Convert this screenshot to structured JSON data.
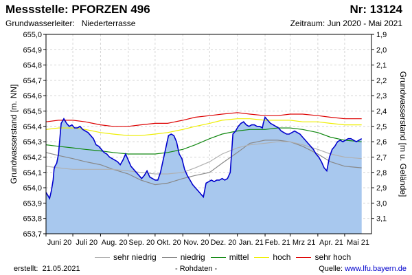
{
  "header": {
    "title": "Messstelle: PFORZEN 496",
    "nr": "Nr: 13124",
    "aquifer_label": "Grundwasserleiter:",
    "aquifer_value": "Niederterrasse",
    "period": "Zeitraum: Jun 2020 - Mai 2021"
  },
  "legend": [
    {
      "label": "sehr niedrig",
      "color": "#b0b0b0"
    },
    {
      "label": "niedrig",
      "color": "#888888"
    },
    {
      "label": "mittel",
      "color": "#118811"
    },
    {
      "label": "hoch",
      "color": "#eeee00"
    },
    {
      "label": "sehr hoch",
      "color": "#dd0000"
    }
  ],
  "footer": {
    "created_label": "erstellt:",
    "created_date": "21.05.2021",
    "raw_note": "- Rohdaten -",
    "source_label": "Quelle:",
    "source_url": "www.lfu.bayern.de"
  },
  "chart_data": {
    "type": "area",
    "ylabel": "Grundwasserstand [m. NN]",
    "y2label": "Grundwasserstand [m u. Gelände]",
    "ylim": [
      653.7,
      655.0
    ],
    "yticks": [
      "655,0",
      "654,9",
      "654,8",
      "654,7",
      "654,6",
      "654,5",
      "654,4",
      "654,3",
      "654,2",
      "654,1",
      "654,0",
      "653,9",
      "653,8",
      "653,7"
    ],
    "y2lim": [
      3.2,
      1.9
    ],
    "y2ticks": [
      "1,9",
      "2,0",
      "2,1",
      "2,2",
      "2,3",
      "2,4",
      "2,5",
      "2,6",
      "2,7",
      "2,8",
      "2,9",
      "3,0",
      "3,1"
    ],
    "xlim": [
      "2020-06-01",
      "2021-05-31"
    ],
    "xticks": [
      "Juni 20",
      "Juli 20",
      "Aug. 20",
      "Sep. 20",
      "Okt. 20",
      "Nov. 20",
      "Dez. 20",
      "Jan. 21",
      "Feb. 21",
      "Mrz 21",
      "Apr. 21",
      "Mai 21"
    ],
    "grid": true,
    "series": [
      {
        "name": "Grundwasserstand",
        "color": "#0000cc",
        "fill": "#a8c8ee",
        "x": [
          "2020-06-01",
          "2020-06-03",
          "2020-06-05",
          "2020-06-07",
          "2020-06-09",
          "2020-06-10",
          "2020-06-11",
          "2020-06-13",
          "2020-06-15",
          "2020-06-18",
          "2020-06-21",
          "2020-06-24",
          "2020-06-27",
          "2020-06-30",
          "2020-07-03",
          "2020-07-06",
          "2020-07-09",
          "2020-07-12",
          "2020-07-15",
          "2020-07-18",
          "2020-07-21",
          "2020-07-24",
          "2020-07-27",
          "2020-07-30",
          "2020-08-02",
          "2020-08-05",
          "2020-08-08",
          "2020-08-11",
          "2020-08-14",
          "2020-08-17",
          "2020-08-20",
          "2020-08-23",
          "2020-08-26",
          "2020-08-29",
          "2020-09-01",
          "2020-09-04",
          "2020-09-07",
          "2020-09-10",
          "2020-09-13",
          "2020-09-16",
          "2020-09-19",
          "2020-09-22",
          "2020-09-25",
          "2020-09-28",
          "2020-10-01",
          "2020-10-04",
          "2020-10-07",
          "2020-10-10",
          "2020-10-13",
          "2020-10-16",
          "2020-10-19",
          "2020-10-22",
          "2020-10-25",
          "2020-10-28",
          "2020-10-31",
          "2020-11-03",
          "2020-11-06",
          "2020-11-09",
          "2020-11-12",
          "2020-11-15",
          "2020-11-18",
          "2020-11-21",
          "2020-11-24",
          "2020-11-27",
          "2020-11-30",
          "2020-12-03",
          "2020-12-06",
          "2020-12-09",
          "2020-12-12",
          "2020-12-15",
          "2020-12-18",
          "2020-12-21",
          "2020-12-24",
          "2020-12-27",
          "2020-12-30",
          "2021-01-02",
          "2021-01-05",
          "2021-01-08",
          "2021-01-11",
          "2021-01-14",
          "2021-01-17",
          "2021-01-20",
          "2021-01-23",
          "2021-01-26",
          "2021-01-29",
          "2021-01-30",
          "2021-02-01",
          "2021-02-04",
          "2021-02-07",
          "2021-02-10",
          "2021-02-13",
          "2021-02-16",
          "2021-02-19",
          "2021-02-22",
          "2021-02-25",
          "2021-02-28",
          "2021-03-03",
          "2021-03-06",
          "2021-03-09",
          "2021-03-12",
          "2021-03-15",
          "2021-03-18",
          "2021-03-21",
          "2021-03-24",
          "2021-03-27",
          "2021-03-30",
          "2021-04-02",
          "2021-04-05",
          "2021-04-08",
          "2021-04-11",
          "2021-04-14",
          "2021-04-17",
          "2021-04-20",
          "2021-04-23",
          "2021-04-26",
          "2021-04-29",
          "2021-05-02",
          "2021-05-05",
          "2021-05-08",
          "2021-05-11",
          "2021-05-14",
          "2021-05-17",
          "2021-05-20"
        ],
        "y": [
          653.97,
          653.95,
          653.93,
          653.98,
          654.05,
          654.12,
          654.14,
          654.16,
          654.22,
          654.42,
          654.45,
          654.42,
          654.4,
          654.41,
          654.39,
          654.39,
          654.4,
          654.38,
          654.37,
          654.36,
          654.34,
          654.32,
          654.28,
          654.27,
          654.25,
          654.23,
          654.22,
          654.2,
          654.19,
          654.18,
          654.17,
          654.15,
          654.18,
          654.22,
          654.18,
          654.14,
          654.12,
          654.1,
          654.08,
          654.06,
          654.08,
          654.11,
          654.07,
          654.06,
          654.05,
          654.05,
          654.1,
          654.18,
          654.26,
          654.34,
          654.35,
          654.34,
          654.3,
          654.22,
          654.19,
          654.12,
          654.08,
          654.05,
          654.02,
          654.0,
          653.98,
          653.96,
          653.94,
          654.03,
          654.04,
          654.05,
          654.04,
          654.05,
          654.05,
          654.06,
          654.05,
          654.06,
          654.1,
          654.35,
          654.37,
          654.4,
          654.42,
          654.43,
          654.41,
          654.4,
          654.41,
          654.41,
          654.4,
          654.4,
          654.39,
          654.42,
          654.46,
          654.44,
          654.42,
          654.41,
          654.4,
          654.39,
          654.37,
          654.36,
          654.35,
          654.35,
          654.36,
          654.37,
          654.36,
          654.35,
          654.33,
          654.31,
          654.29,
          654.27,
          654.25,
          654.22,
          654.2,
          654.17,
          654.13,
          654.11,
          654.2,
          654.25,
          654.27,
          654.3,
          654.31,
          654.3,
          654.31,
          654.32,
          654.32,
          654.31,
          654.3,
          654.31,
          654.32
        ]
      },
      {
        "name": "sehr hoch",
        "color": "#dd0000",
        "x": [
          "2020-06-01",
          "2020-06-15",
          "2020-07-01",
          "2020-07-15",
          "2020-08-01",
          "2020-08-15",
          "2020-09-01",
          "2020-09-15",
          "2020-10-01",
          "2020-10-15",
          "2020-11-01",
          "2020-11-15",
          "2020-12-01",
          "2020-12-15",
          "2021-01-01",
          "2021-01-15",
          "2021-02-01",
          "2021-02-15",
          "2021-03-01",
          "2021-03-15",
          "2021-04-01",
          "2021-04-15",
          "2021-05-01",
          "2021-05-20"
        ],
        "y": [
          654.43,
          654.44,
          654.44,
          654.43,
          654.41,
          654.4,
          654.4,
          654.41,
          654.42,
          654.42,
          654.44,
          654.46,
          654.47,
          654.48,
          654.49,
          654.48,
          654.47,
          654.47,
          654.48,
          654.48,
          654.47,
          654.46,
          654.45,
          654.45
        ]
      },
      {
        "name": "hoch",
        "color": "#eeee00",
        "x": [
          "2020-06-01",
          "2020-06-15",
          "2020-07-01",
          "2020-07-15",
          "2020-08-01",
          "2020-08-15",
          "2020-09-01",
          "2020-09-15",
          "2020-10-01",
          "2020-10-15",
          "2020-11-01",
          "2020-11-15",
          "2020-12-01",
          "2020-12-15",
          "2021-01-01",
          "2021-01-15",
          "2021-02-01",
          "2021-02-15",
          "2021-03-01",
          "2021-03-15",
          "2021-04-01",
          "2021-04-15",
          "2021-05-01",
          "2021-05-20"
        ],
        "y": [
          654.38,
          654.39,
          654.39,
          654.38,
          654.36,
          654.35,
          654.34,
          654.34,
          654.35,
          654.36,
          654.38,
          654.4,
          654.42,
          654.44,
          654.45,
          654.45,
          654.44,
          654.44,
          654.44,
          654.43,
          654.43,
          654.42,
          654.41,
          654.41
        ]
      },
      {
        "name": "mittel",
        "color": "#118811",
        "x": [
          "2020-06-01",
          "2020-06-15",
          "2020-07-01",
          "2020-07-15",
          "2020-08-01",
          "2020-08-15",
          "2020-09-01",
          "2020-09-15",
          "2020-10-01",
          "2020-10-15",
          "2020-11-01",
          "2020-11-15",
          "2020-12-01",
          "2020-12-15",
          "2021-01-01",
          "2021-01-15",
          "2021-02-01",
          "2021-02-15",
          "2021-03-01",
          "2021-03-15",
          "2021-04-01",
          "2021-04-15",
          "2021-05-01",
          "2021-05-20"
        ],
        "y": [
          654.28,
          654.27,
          654.26,
          654.25,
          654.24,
          654.23,
          654.22,
          654.22,
          654.22,
          654.23,
          654.25,
          654.28,
          654.32,
          654.35,
          654.37,
          654.38,
          654.38,
          654.39,
          654.39,
          654.38,
          654.36,
          654.33,
          654.31,
          654.3
        ]
      },
      {
        "name": "niedrig",
        "color": "#888888",
        "x": [
          "2020-06-01",
          "2020-06-15",
          "2020-07-01",
          "2020-07-15",
          "2020-08-01",
          "2020-08-15",
          "2020-09-01",
          "2020-09-15",
          "2020-10-01",
          "2020-10-15",
          "2020-11-01",
          "2020-11-15",
          "2020-12-01",
          "2020-12-15",
          "2021-01-01",
          "2021-01-15",
          "2021-02-01",
          "2021-02-15",
          "2021-03-01",
          "2021-03-15",
          "2021-04-01",
          "2021-04-15",
          "2021-05-01",
          "2021-05-20"
        ],
        "y": [
          654.23,
          654.21,
          654.19,
          654.17,
          654.15,
          654.12,
          654.09,
          654.05,
          654.02,
          654.03,
          654.06,
          654.08,
          654.1,
          654.16,
          654.23,
          654.29,
          654.31,
          654.31,
          654.3,
          654.27,
          654.22,
          654.17,
          654.14,
          654.13
        ]
      },
      {
        "name": "sehr niedrig",
        "color": "#b0b0b0",
        "x": [
          "2020-06-01",
          "2020-06-15",
          "2020-07-01",
          "2020-07-15",
          "2020-08-01",
          "2020-08-15",
          "2020-09-01",
          "2020-09-15",
          "2020-10-01",
          "2020-10-15",
          "2020-11-01",
          "2020-11-15",
          "2020-12-01",
          "2020-12-15",
          "2021-01-01",
          "2021-01-15",
          "2021-02-01",
          "2021-02-15",
          "2021-03-01",
          "2021-03-15",
          "2021-04-01",
          "2021-04-15",
          "2021-05-01",
          "2021-05-20"
        ],
        "y": [
          654.14,
          654.13,
          654.12,
          654.12,
          654.12,
          654.12,
          654.11,
          654.1,
          654.09,
          654.09,
          654.1,
          654.13,
          654.17,
          654.22,
          654.26,
          654.28,
          654.29,
          654.3,
          654.3,
          654.28,
          654.25,
          654.22,
          654.2,
          654.19
        ]
      }
    ]
  }
}
